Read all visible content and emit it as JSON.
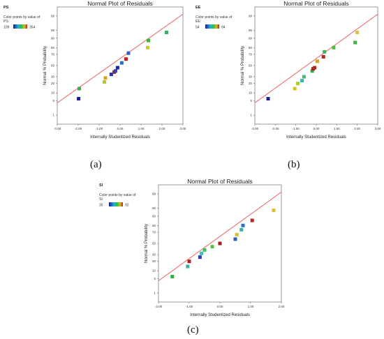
{
  "figures": [
    {
      "id": "a",
      "caption": "(a)"
    },
    {
      "id": "b",
      "caption": "(b)"
    },
    {
      "id": "c",
      "caption": "(c)"
    }
  ],
  "chart_data": [
    {
      "type": "scatter",
      "panel": "a",
      "title": "Normal Plot of Residuals",
      "xlabel": "Internally Studentized Residuals",
      "ylabel": "Normal % Probability",
      "response": "PS",
      "color_legend_title": "Color points by value of",
      "color_legend_var": "PS:",
      "color_min": "109",
      "color_max": "354",
      "xlim": [
        -3,
        3
      ],
      "xticks": [
        "-3.00",
        "-2.00",
        "-1.00",
        "0.00",
        "1.00",
        "2.00",
        "3.00"
      ],
      "yticks": [
        "1",
        "5",
        "10",
        "20",
        "30",
        "50",
        "70",
        "80",
        "90",
        "95",
        "99"
      ],
      "fit_line": {
        "x": [
          -3.0,
          3.0
        ],
        "y": [
          4.0,
          99.2
        ],
        "color": "#e87070"
      },
      "points": [
        {
          "x": -1.98,
          "y": 6,
          "color": "#1a1aa0"
        },
        {
          "x": -1.95,
          "y": 14,
          "color": "#33b34d"
        },
        {
          "x": -0.75,
          "y": 22,
          "color": "#b8c42a"
        },
        {
          "x": -0.7,
          "y": 28,
          "color": "#e0a020"
        },
        {
          "x": -0.42,
          "y": 34,
          "color": "#2233bb"
        },
        {
          "x": -0.28,
          "y": 38,
          "color": "#a02020"
        },
        {
          "x": -0.22,
          "y": 40,
          "color": "#3040c0"
        },
        {
          "x": -0.12,
          "y": 46,
          "color": "#2020a0"
        },
        {
          "x": 0.08,
          "y": 55,
          "color": "#2a70c0"
        },
        {
          "x": 0.28,
          "y": 62,
          "color": "#c02020"
        },
        {
          "x": 0.4,
          "y": 72,
          "color": "#2a60c8"
        },
        {
          "x": 1.32,
          "y": 80,
          "color": "#d4c428"
        },
        {
          "x": 1.35,
          "y": 88,
          "color": "#40b040"
        },
        {
          "x": 2.22,
          "y": 94,
          "color": "#30b060"
        }
      ]
    },
    {
      "type": "scatter",
      "panel": "b",
      "title": "Normal Plot of Residuals",
      "xlabel": "Internally Studentized Residuals",
      "ylabel": "Normal % Probability",
      "response": "EE",
      "color_legend_title": "Color points by value of",
      "color_legend_var": "EE:",
      "color_min": "54",
      "color_max": "94",
      "xlim": [
        -3,
        3
      ],
      "xticks": [
        "-3.00",
        "-2.00",
        "-1.00",
        "0.00",
        "1.00",
        "2.00",
        "3.00"
      ],
      "yticks": [
        "1",
        "5",
        "10",
        "20",
        "30",
        "50",
        "70",
        "80",
        "90",
        "95",
        "99"
      ],
      "fit_line": {
        "x": [
          -3.0,
          3.0
        ],
        "y": [
          4.0,
          99.2
        ],
        "color": "#e87070"
      },
      "points": [
        {
          "x": -2.35,
          "y": 6,
          "color": "#1a1aa0"
        },
        {
          "x": -1.05,
          "y": 14,
          "color": "#d4c428"
        },
        {
          "x": -0.9,
          "y": 20,
          "color": "#b0c830"
        },
        {
          "x": -0.7,
          "y": 24,
          "color": "#40b8b0"
        },
        {
          "x": -0.6,
          "y": 30,
          "color": "#40c070"
        },
        {
          "x": -0.2,
          "y": 40,
          "color": "#30b040"
        },
        {
          "x": -0.15,
          "y": 44,
          "color": "#a02020"
        },
        {
          "x": -0.08,
          "y": 46,
          "color": "#b02525"
        },
        {
          "x": 0.05,
          "y": 58,
          "color": "#d0a030"
        },
        {
          "x": 0.35,
          "y": 66,
          "color": "#c02020"
        },
        {
          "x": 0.4,
          "y": 74,
          "color": "#40b060"
        },
        {
          "x": 0.85,
          "y": 80,
          "color": "#40c040"
        },
        {
          "x": 1.9,
          "y": 86,
          "color": "#40b040"
        },
        {
          "x": 2.0,
          "y": 94,
          "color": "#e0c030"
        }
      ]
    },
    {
      "type": "scatter",
      "panel": "c",
      "title": "Normal Plot of Residuals",
      "xlabel": "Internally Studentized Residuals",
      "ylabel": "Normal % Probability",
      "response": "SI",
      "color_legend_title": "Color points by value of",
      "color_legend_var": "SI:",
      "color_min": "35",
      "color_max": "92",
      "xlim": [
        -2,
        2
      ],
      "xticks": [
        "-2.00",
        "-1.00",
        "0.00",
        "1.00",
        "2.00"
      ],
      "yticks": [
        "1",
        "5",
        "10",
        "20",
        "30",
        "50",
        "70",
        "80",
        "90",
        "95",
        "99"
      ],
      "fit_line": {
        "x": [
          -2.0,
          2.0
        ],
        "y": [
          4.0,
          99.2
        ],
        "color": "#e87070"
      },
      "points": [
        {
          "x": -1.55,
          "y": 6,
          "color": "#30b040"
        },
        {
          "x": -1.05,
          "y": 14,
          "color": "#40b0a0"
        },
        {
          "x": -1.0,
          "y": 20,
          "color": "#b02020"
        },
        {
          "x": -0.65,
          "y": 26,
          "color": "#2a3ab0"
        },
        {
          "x": -0.6,
          "y": 32,
          "color": "#40c0b0"
        },
        {
          "x": -0.5,
          "y": 38,
          "color": "#40c060"
        },
        {
          "x": -0.25,
          "y": 44,
          "color": "#58c040"
        },
        {
          "x": 0.0,
          "y": 50,
          "color": "#a02020"
        },
        {
          "x": 0.5,
          "y": 58,
          "color": "#2a60c8"
        },
        {
          "x": 0.55,
          "y": 66,
          "color": "#d4c428"
        },
        {
          "x": 0.7,
          "y": 74,
          "color": "#40b0a0"
        },
        {
          "x": 0.75,
          "y": 80,
          "color": "#2a70c8"
        },
        {
          "x": 1.05,
          "y": 86,
          "color": "#c02020"
        },
        {
          "x": 1.75,
          "y": 94,
          "color": "#e0c030"
        }
      ]
    }
  ]
}
